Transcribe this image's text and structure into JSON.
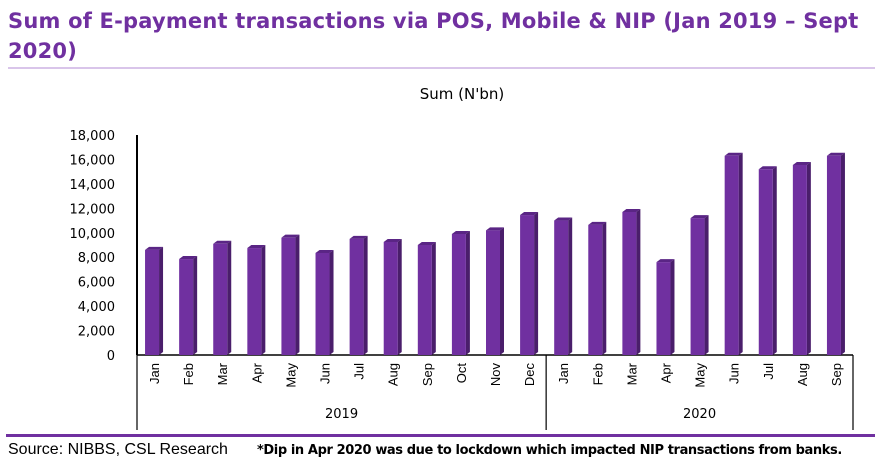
{
  "title": "Sum of E-payment transactions via POS, Mobile & NIP (Jan 2019 – Sept 2020)",
  "source": "Source: NIBBS, CSL Research",
  "note": "*Dip in Apr 2020 was due to lockdown which impacted NIP transactions from banks.",
  "colors": {
    "bar": "#7030a0",
    "bar_side": "#4a1e6b",
    "title": "#7030a0"
  },
  "chart_data": {
    "type": "bar",
    "title": "Sum (N'bn)",
    "xlabel": "",
    "ylabel": "",
    "ylim": [
      0,
      18000
    ],
    "yticks": [
      0,
      2000,
      4000,
      6000,
      8000,
      10000,
      12000,
      14000,
      16000,
      18000
    ],
    "ytick_labels": [
      "0",
      "2,000",
      "4,000",
      "6,000",
      "8,000",
      "10,000",
      "12,000",
      "14,000",
      "16,000",
      "18,000"
    ],
    "categories": [
      "Jan",
      "Feb",
      "Mar",
      "Apr",
      "May",
      "Jun",
      "Jul",
      "Aug",
      "Sep",
      "Oct",
      "Nov",
      "Dec",
      "Jan",
      "Feb",
      "Mar",
      "Apr",
      "May",
      "Jun",
      "Jul",
      "Aug",
      "Sep"
    ],
    "groups": [
      {
        "label": "2019",
        "count": 12
      },
      {
        "label": "2020",
        "count": 9
      }
    ],
    "values": [
      8600,
      7850,
      9100,
      8750,
      9600,
      8350,
      9500,
      9250,
      9000,
      9900,
      10200,
      11450,
      11000,
      10650,
      11700,
      7600,
      11200,
      16300,
      15200,
      15550,
      16300
    ],
    "grid": false,
    "legend": "none"
  }
}
